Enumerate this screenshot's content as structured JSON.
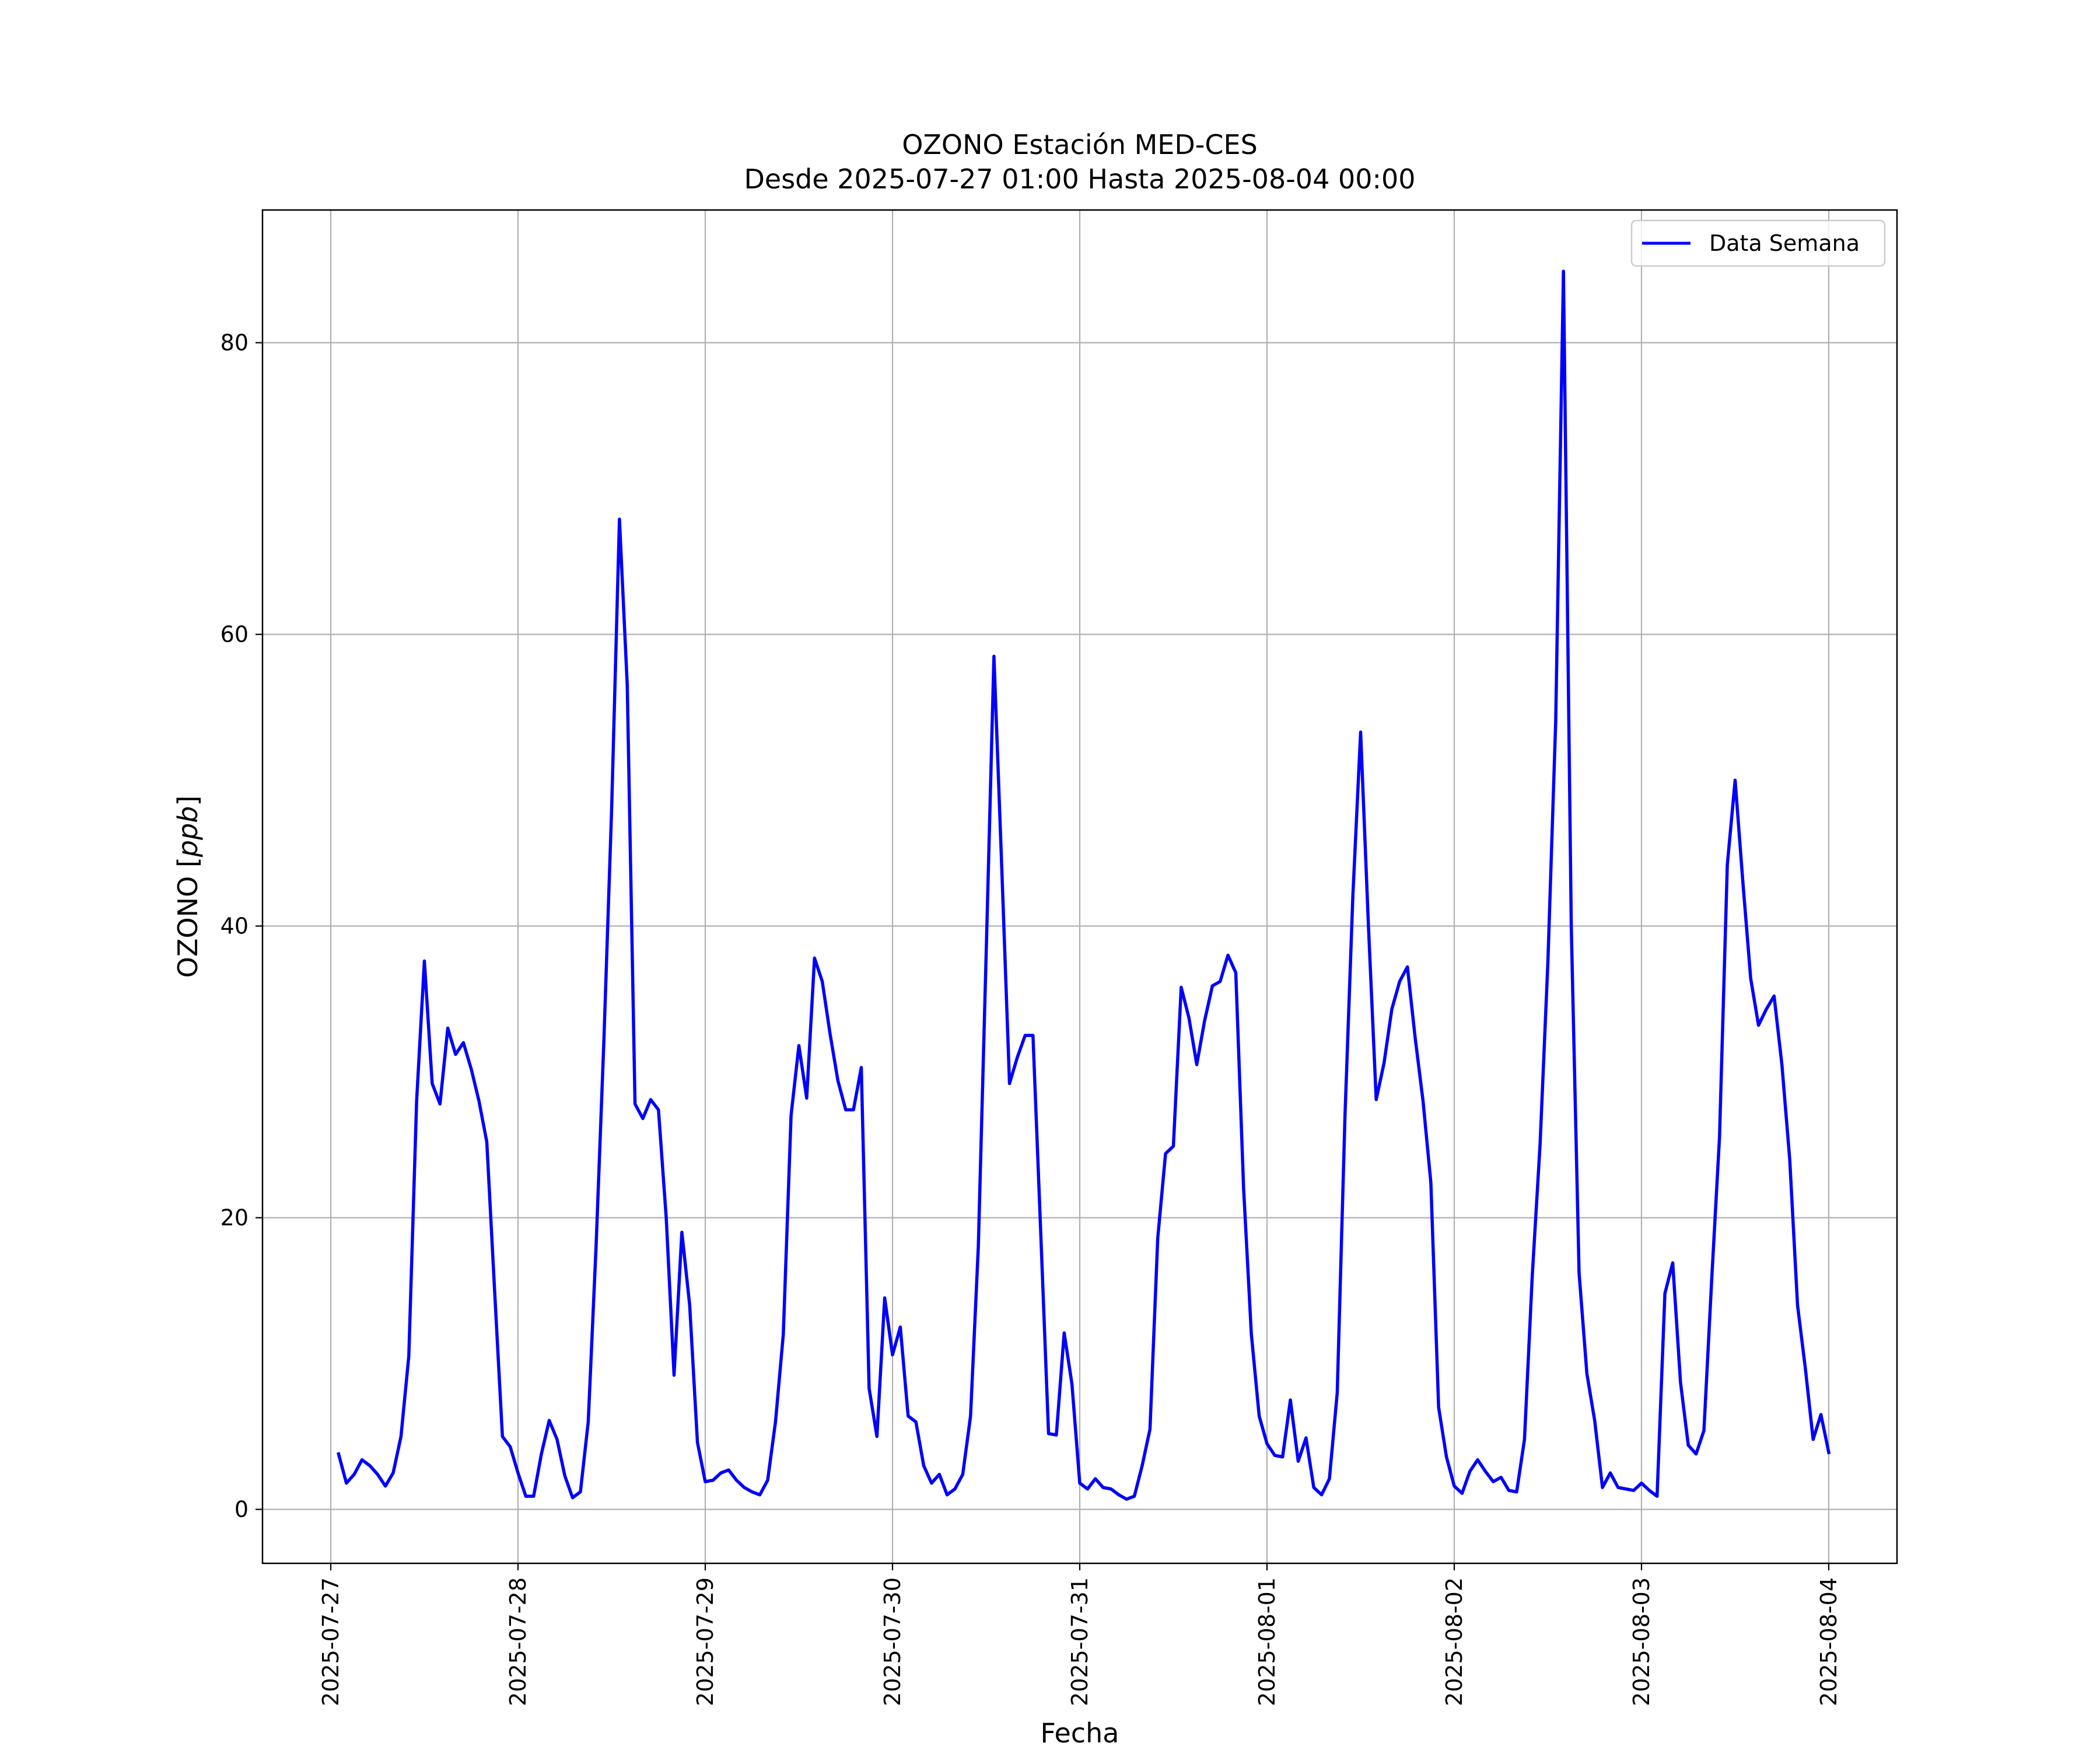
{
  "chart_data": {
    "type": "line",
    "title": "OZONO Estación MED-CES",
    "subtitle": "Desde 2025-07-27 01:00 Hasta 2025-08-04 00:00",
    "xlabel": "Fecha",
    "ylabel_main": "OZONO [",
    "ylabel_unit": "ppb",
    "ylabel_end": "]",
    "xlim": [
      "2025-07-26 15:15",
      "2025-08-04 08:45"
    ],
    "ylim": [
      -3.7,
      89.1
    ],
    "x_ticks": [
      "2025-07-27",
      "2025-07-28",
      "2025-07-29",
      "2025-07-30",
      "2025-07-31",
      "2025-08-01",
      "2025-08-02",
      "2025-08-03",
      "2025-08-04"
    ],
    "y_ticks": [
      0,
      20,
      40,
      60,
      80
    ],
    "grid": true,
    "legend_position": "top-right",
    "series": [
      {
        "name": "Data Semana",
        "color": "#0000ff",
        "points": [
          [
            "2025-07-27 01:00",
            3.8
          ],
          [
            "2025-07-27 02:00",
            1.8
          ],
          [
            "2025-07-27 03:00",
            2.4
          ],
          [
            "2025-07-27 04:00",
            3.4
          ],
          [
            "2025-07-27 05:00",
            3.0
          ],
          [
            "2025-07-27 06:00",
            2.4
          ],
          [
            "2025-07-27 07:00",
            1.6
          ],
          [
            "2025-07-27 08:00",
            2.5
          ],
          [
            "2025-07-27 09:00",
            5.0
          ],
          [
            "2025-07-27 10:00",
            10.5
          ],
          [
            "2025-07-27 11:00",
            28.0
          ],
          [
            "2025-07-27 12:00",
            37.6
          ],
          [
            "2025-07-27 13:00",
            29.2
          ],
          [
            "2025-07-27 14:00",
            27.8
          ],
          [
            "2025-07-27 15:00",
            33.0
          ],
          [
            "2025-07-27 16:00",
            31.2
          ],
          [
            "2025-07-27 17:00",
            32.0
          ],
          [
            "2025-07-27 18:00",
            30.2
          ],
          [
            "2025-07-27 19:00",
            28.0
          ],
          [
            "2025-07-27 20:00",
            25.2
          ],
          [
            "2025-07-27 21:00",
            15.0
          ],
          [
            "2025-07-27 22:00",
            5.0
          ],
          [
            "2025-07-27 23:00",
            4.3
          ],
          [
            "2025-07-28 00:00",
            2.5
          ],
          [
            "2025-07-28 01:00",
            0.9
          ],
          [
            "2025-07-28 02:00",
            0.9
          ],
          [
            "2025-07-28 03:00",
            3.8
          ],
          [
            "2025-07-28 04:00",
            6.1
          ],
          [
            "2025-07-28 05:00",
            4.8
          ],
          [
            "2025-07-28 06:00",
            2.3
          ],
          [
            "2025-07-28 07:00",
            0.8
          ],
          [
            "2025-07-28 08:00",
            1.2
          ],
          [
            "2025-07-28 09:00",
            6.0
          ],
          [
            "2025-07-28 10:00",
            18.0
          ],
          [
            "2025-07-28 11:00",
            32.0
          ],
          [
            "2025-07-28 12:00",
            48.0
          ],
          [
            "2025-07-28 13:00",
            67.9
          ],
          [
            "2025-07-28 14:00",
            56.5
          ],
          [
            "2025-07-28 15:00",
            27.8
          ],
          [
            "2025-07-28 16:00",
            26.8
          ],
          [
            "2025-07-28 17:00",
            28.1
          ],
          [
            "2025-07-28 18:00",
            27.4
          ],
          [
            "2025-07-28 19:00",
            20.0
          ],
          [
            "2025-07-28 20:00",
            9.2
          ],
          [
            "2025-07-28 21:00",
            19.0
          ],
          [
            "2025-07-28 22:00",
            14.0
          ],
          [
            "2025-07-28 23:00",
            4.6
          ],
          [
            "2025-07-29 00:00",
            1.9
          ],
          [
            "2025-07-29 01:00",
            2.0
          ],
          [
            "2025-07-29 02:00",
            2.5
          ],
          [
            "2025-07-29 03:00",
            2.7
          ],
          [
            "2025-07-29 04:00",
            2.0
          ],
          [
            "2025-07-29 05:00",
            1.5
          ],
          [
            "2025-07-29 06:00",
            1.2
          ],
          [
            "2025-07-29 07:00",
            1.0
          ],
          [
            "2025-07-29 08:00",
            2.0
          ],
          [
            "2025-07-29 09:00",
            6.0
          ],
          [
            "2025-07-29 10:00",
            12.0
          ],
          [
            "2025-07-29 11:00",
            27.0
          ],
          [
            "2025-07-29 12:00",
            31.8
          ],
          [
            "2025-07-29 13:00",
            28.2
          ],
          [
            "2025-07-29 14:00",
            37.8
          ],
          [
            "2025-07-29 15:00",
            36.2
          ],
          [
            "2025-07-29 16:00",
            32.6
          ],
          [
            "2025-07-29 17:00",
            29.4
          ],
          [
            "2025-07-29 18:00",
            27.4
          ],
          [
            "2025-07-29 19:00",
            27.4
          ],
          [
            "2025-07-29 20:00",
            30.3
          ],
          [
            "2025-07-29 21:00",
            8.3
          ],
          [
            "2025-07-29 22:00",
            5.0
          ],
          [
            "2025-07-29 23:00",
            14.5
          ],
          [
            "2025-07-30 00:00",
            10.6
          ],
          [
            "2025-07-30 01:00",
            12.5
          ],
          [
            "2025-07-30 02:00",
            6.4
          ],
          [
            "2025-07-30 03:00",
            6.0
          ],
          [
            "2025-07-30 04:00",
            3.0
          ],
          [
            "2025-07-30 05:00",
            1.8
          ],
          [
            "2025-07-30 06:00",
            2.4
          ],
          [
            "2025-07-30 07:00",
            1.0
          ],
          [
            "2025-07-30 08:00",
            1.4
          ],
          [
            "2025-07-30 09:00",
            2.4
          ],
          [
            "2025-07-30 10:00",
            6.4
          ],
          [
            "2025-07-30 11:00",
            18.0
          ],
          [
            "2025-07-30 12:00",
            38.0
          ],
          [
            "2025-07-30 13:00",
            58.5
          ],
          [
            "2025-07-30 14:00",
            44.0
          ],
          [
            "2025-07-30 15:00",
            29.2
          ],
          [
            "2025-07-30 16:00",
            31.0
          ],
          [
            "2025-07-30 17:00",
            32.5
          ],
          [
            "2025-07-30 18:00",
            32.5
          ],
          [
            "2025-07-30 19:00",
            19.0
          ],
          [
            "2025-07-30 20:00",
            5.2
          ],
          [
            "2025-07-30 21:00",
            5.1
          ],
          [
            "2025-07-30 22:00",
            12.1
          ],
          [
            "2025-07-30 23:00",
            8.6
          ],
          [
            "2025-07-31 00:00",
            1.8
          ],
          [
            "2025-07-31 01:00",
            1.4
          ],
          [
            "2025-07-31 02:00",
            2.1
          ],
          [
            "2025-07-31 03:00",
            1.5
          ],
          [
            "2025-07-31 04:00",
            1.4
          ],
          [
            "2025-07-31 05:00",
            1.0
          ],
          [
            "2025-07-31 06:00",
            0.7
          ],
          [
            "2025-07-31 07:00",
            0.9
          ],
          [
            "2025-07-31 08:00",
            3.0
          ],
          [
            "2025-07-31 09:00",
            5.5
          ],
          [
            "2025-07-31 10:00",
            18.6
          ],
          [
            "2025-07-31 11:00",
            24.4
          ],
          [
            "2025-07-31 12:00",
            24.9
          ],
          [
            "2025-07-31 13:00",
            35.8
          ],
          [
            "2025-07-31 14:00",
            33.7
          ],
          [
            "2025-07-31 15:00",
            30.5
          ],
          [
            "2025-07-31 16:00",
            33.5
          ],
          [
            "2025-07-31 17:00",
            35.9
          ],
          [
            "2025-07-31 18:00",
            36.2
          ],
          [
            "2025-07-31 19:00",
            38.0
          ],
          [
            "2025-07-31 20:00",
            36.8
          ],
          [
            "2025-07-31 21:00",
            22.0
          ],
          [
            "2025-07-31 22:00",
            12.0
          ],
          [
            "2025-07-31 23:00",
            6.4
          ],
          [
            "2025-08-01 00:00",
            4.5
          ],
          [
            "2025-08-01 01:00",
            3.7
          ],
          [
            "2025-08-01 02:00",
            3.6
          ],
          [
            "2025-08-01 03:00",
            7.5
          ],
          [
            "2025-08-01 04:00",
            3.3
          ],
          [
            "2025-08-01 05:00",
            4.9
          ],
          [
            "2025-08-01 06:00",
            1.5
          ],
          [
            "2025-08-01 07:00",
            1.0
          ],
          [
            "2025-08-01 08:00",
            2.1
          ],
          [
            "2025-08-01 09:00",
            8.0
          ],
          [
            "2025-08-01 10:00",
            27.0
          ],
          [
            "2025-08-01 11:00",
            42.0
          ],
          [
            "2025-08-01 12:00",
            53.3
          ],
          [
            "2025-08-01 13:00",
            40.0
          ],
          [
            "2025-08-01 14:00",
            28.1
          ],
          [
            "2025-08-01 15:00",
            30.6
          ],
          [
            "2025-08-01 16:00",
            34.3
          ],
          [
            "2025-08-01 17:00",
            36.2
          ],
          [
            "2025-08-01 18:00",
            37.2
          ],
          [
            "2025-08-01 19:00",
            32.3
          ],
          [
            "2025-08-01 20:00",
            28.0
          ],
          [
            "2025-08-01 21:00",
            22.4
          ],
          [
            "2025-08-01 22:00",
            7.0
          ],
          [
            "2025-08-01 23:00",
            3.6
          ],
          [
            "2025-08-02 00:00",
            1.6
          ],
          [
            "2025-08-02 01:00",
            1.1
          ],
          [
            "2025-08-02 02:00",
            2.6
          ],
          [
            "2025-08-02 03:00",
            3.4
          ],
          [
            "2025-08-02 04:00",
            2.6
          ],
          [
            "2025-08-02 05:00",
            1.9
          ],
          [
            "2025-08-02 06:00",
            2.2
          ],
          [
            "2025-08-02 07:00",
            1.3
          ],
          [
            "2025-08-02 08:00",
            1.2
          ],
          [
            "2025-08-02 09:00",
            4.8
          ],
          [
            "2025-08-02 10:00",
            16.0
          ],
          [
            "2025-08-02 11:00",
            25.0
          ],
          [
            "2025-08-02 12:00",
            37.5
          ],
          [
            "2025-08-02 13:00",
            54.0
          ],
          [
            "2025-08-02 14:00",
            84.9
          ],
          [
            "2025-08-02 15:00",
            40.0
          ],
          [
            "2025-08-02 16:00",
            16.2
          ],
          [
            "2025-08-02 17:00",
            9.3
          ],
          [
            "2025-08-02 18:00",
            6.1
          ],
          [
            "2025-08-02 19:00",
            1.5
          ],
          [
            "2025-08-02 20:00",
            2.5
          ],
          [
            "2025-08-02 21:00",
            1.5
          ],
          [
            "2025-08-02 22:00",
            1.4
          ],
          [
            "2025-08-02 23:00",
            1.3
          ],
          [
            "2025-08-03 00:00",
            1.8
          ],
          [
            "2025-08-03 01:00",
            1.3
          ],
          [
            "2025-08-03 02:00",
            0.9
          ],
          [
            "2025-08-03 03:00",
            14.8
          ],
          [
            "2025-08-03 04:00",
            16.9
          ],
          [
            "2025-08-03 05:00",
            8.7
          ],
          [
            "2025-08-03 06:00",
            4.4
          ],
          [
            "2025-08-03 07:00",
            3.8
          ],
          [
            "2025-08-03 08:00",
            5.4
          ],
          [
            "2025-08-03 09:00",
            15.8
          ],
          [
            "2025-08-03 10:00",
            25.5
          ],
          [
            "2025-08-03 11:00",
            44.2
          ],
          [
            "2025-08-03 12:00",
            50.0
          ],
          [
            "2025-08-03 13:00",
            43.0
          ],
          [
            "2025-08-03 14:00",
            36.4
          ],
          [
            "2025-08-03 15:00",
            33.2
          ],
          [
            "2025-08-03 16:00",
            34.3
          ],
          [
            "2025-08-03 17:00",
            35.2
          ],
          [
            "2025-08-03 18:00",
            30.5
          ],
          [
            "2025-08-03 19:00",
            24.0
          ],
          [
            "2025-08-03 20:00",
            14.0
          ],
          [
            "2025-08-03 21:00",
            9.7
          ],
          [
            "2025-08-03 22:00",
            4.8
          ],
          [
            "2025-08-03 23:00",
            6.5
          ],
          [
            "2025-08-04 00:00",
            3.9
          ]
        ]
      }
    ]
  }
}
